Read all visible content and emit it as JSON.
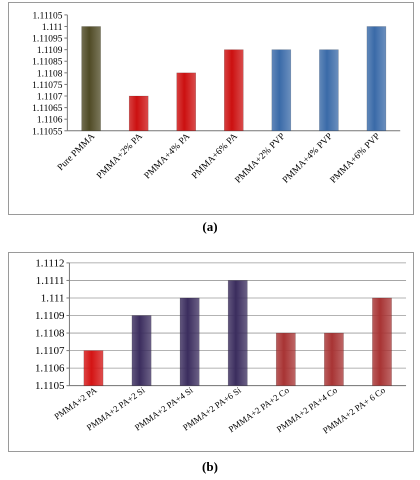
{
  "figure": {
    "caption_a": "(a)",
    "caption_b": "(b)"
  },
  "chart_data": [
    {
      "type": "bar",
      "title": "",
      "xlabel": "",
      "ylabel": "",
      "ylim": [
        1.11055,
        1.11105
      ],
      "yticks": [
        "1.11055",
        "1.1106",
        "1.11065",
        "1.1107",
        "1.11075",
        "1.1108",
        "1.11085",
        "1.1109",
        "1.11095",
        "1.111",
        "1.11105"
      ],
      "grid": false,
      "categories": [
        "Pure PMMA",
        "PMMA+2% PA",
        "PMMA+4% PA",
        "PMMA+6% PA",
        "PMMA+2% PVP",
        "PMMA+4% PVP",
        "PMMA+6% PVP"
      ],
      "values": [
        1.111,
        1.1107,
        1.1108,
        1.1109,
        1.1109,
        1.1109,
        1.111
      ],
      "colors": [
        "#4f4a25",
        "#cc1010",
        "#cc1010",
        "#cc1010",
        "#3a6aa8",
        "#3a6aa8",
        "#3a6aa8"
      ]
    },
    {
      "type": "bar",
      "title": "",
      "xlabel": "",
      "ylabel": "",
      "ylim": [
        1.1105,
        1.1112
      ],
      "yticks": [
        "1.1105",
        "1.1106",
        "1.1107",
        "1.1108",
        "1.1109",
        "1.111",
        "1.1111",
        "1.1112"
      ],
      "grid": true,
      "categories": [
        "PMMA+2 PA",
        "PMMA+2 PA+2 Si",
        "PMMA+2 PA+4 Si",
        "PMMA+2 PA+6 Si",
        "PMMA+2 PA+2 Co",
        "PMMA+2 PA+4 Co",
        "PMMA+2 PA+ 6 Co"
      ],
      "values": [
        1.1107,
        1.1109,
        1.111,
        1.1111,
        1.1108,
        1.1108,
        1.111
      ],
      "colors": [
        "#d41414",
        "#3b2d5e",
        "#3b2d5e",
        "#3b2d5e",
        "#a83434",
        "#a83434",
        "#a83434"
      ]
    }
  ]
}
